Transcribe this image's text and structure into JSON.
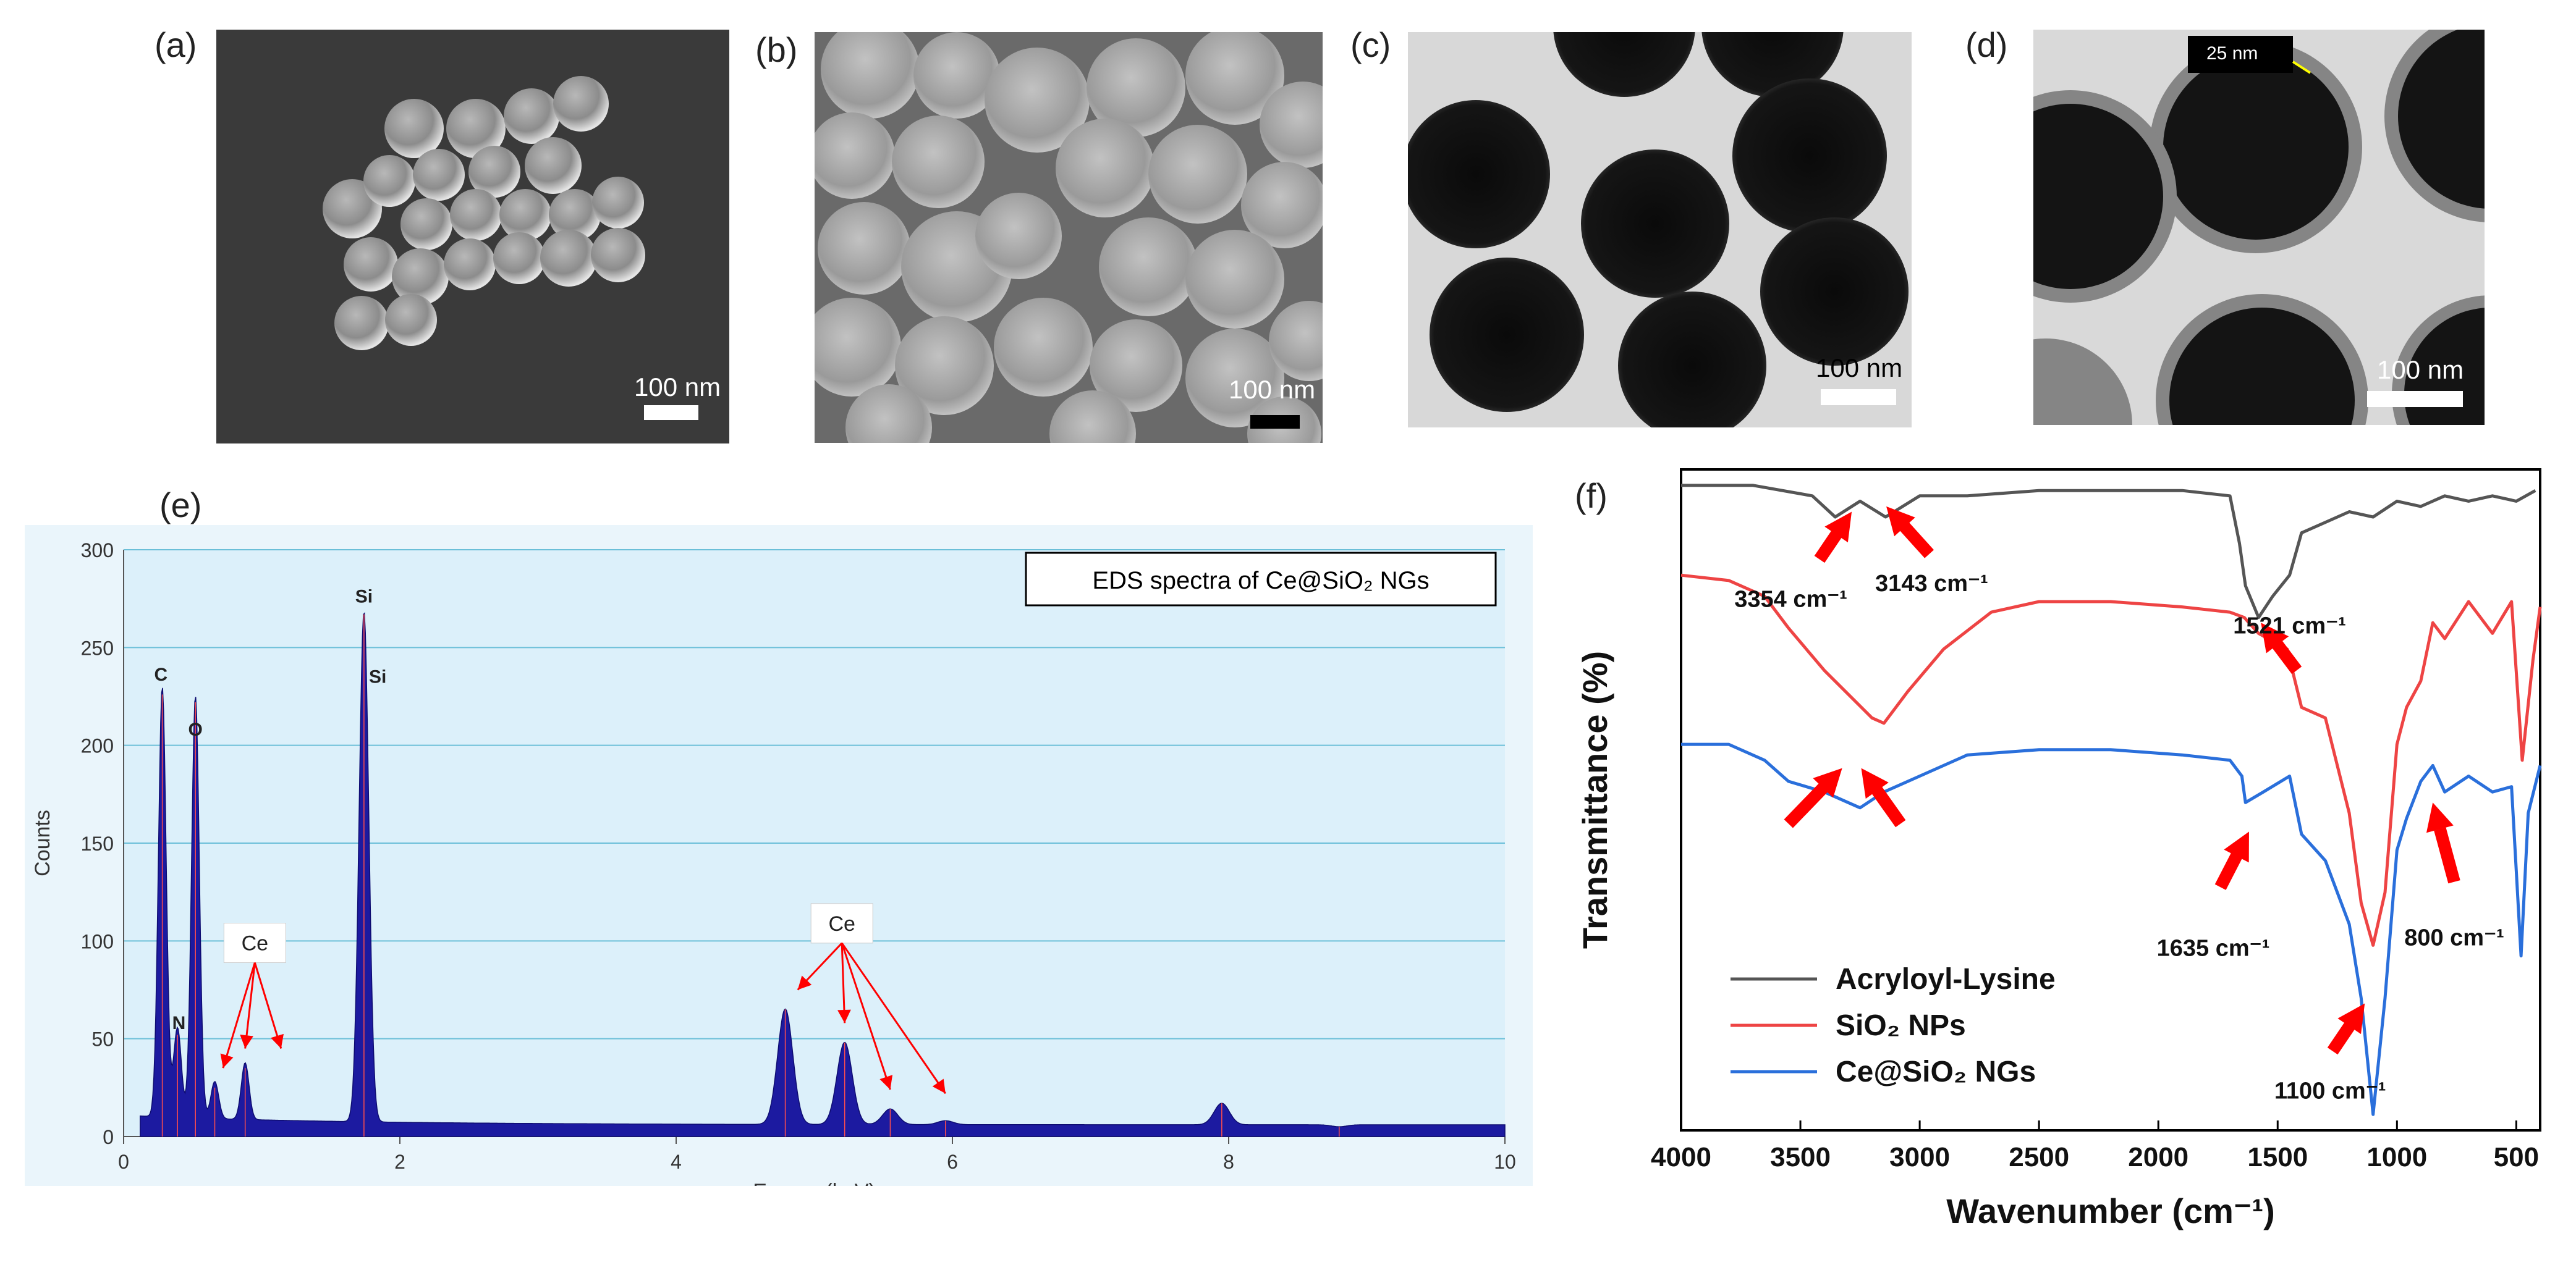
{
  "panels": {
    "a": {
      "letter": "(a)",
      "scale": "100 nm"
    },
    "b": {
      "letter": "(b)",
      "scale": "100 nm"
    },
    "c": {
      "letter": "(c)",
      "scale": "100 nm"
    },
    "d": {
      "letter": "(d)",
      "scale": "100 nm",
      "shell_label": "25 nm"
    },
    "e": {
      "letter": "(e)"
    },
    "f": {
      "letter": "(f)"
    }
  },
  "colors": {
    "eds_bg": "#dcf0fa",
    "eds_fill": "#1c1aa0",
    "arrow_red": "#ff0000",
    "acryloyl": "#555555",
    "sio2": "#ee4444",
    "ce_sio2": "#2a6fdb"
  },
  "chart_data": [
    {
      "type": "area",
      "title": "EDS spectra of Ce@SiO₂ NGs",
      "xlabel": "Energy (keV)",
      "ylabel": "Counts",
      "xlim": [
        0,
        10
      ],
      "ylim": [
        0,
        300
      ],
      "xticks": [
        0,
        2,
        4,
        6,
        8,
        10
      ],
      "yticks": [
        0,
        50,
        100,
        150,
        200,
        250,
        300
      ],
      "grid": true,
      "peaks": [
        {
          "label": "C",
          "x": 0.28,
          "y": 226
        },
        {
          "label": "N",
          "x": 0.39,
          "y": 52
        },
        {
          "label": "O",
          "x": 0.52,
          "y": 222
        },
        {
          "label": "",
          "x": 0.66,
          "y": 25
        },
        {
          "label": "",
          "x": 0.88,
          "y": 35
        },
        {
          "label": "Si",
          "x": 1.74,
          "y": 267
        },
        {
          "label": "",
          "x": 4.79,
          "y": 65
        },
        {
          "label": "",
          "x": 5.22,
          "y": 48
        },
        {
          "label": "",
          "x": 5.55,
          "y": 14
        },
        {
          "label": "",
          "x": 5.95,
          "y": 8
        },
        {
          "label": "",
          "x": 7.95,
          "y": 17
        },
        {
          "label": "",
          "x": 8.8,
          "y": 5
        }
      ],
      "element_labels": [
        {
          "text": "C",
          "x": 0.27,
          "y": 233
        },
        {
          "text": "O",
          "x": 0.52,
          "y": 205
        },
        {
          "text": "N",
          "x": 0.4,
          "y": 55
        },
        {
          "text": "Si",
          "x": 1.74,
          "y": 273
        },
        {
          "text": "Si",
          "x": 1.84,
          "y": 232
        }
      ],
      "annotations": [
        {
          "text": "Ce",
          "x": 0.95,
          "y": 99,
          "arrows_to": [
            0.72,
            0.88,
            1.14
          ]
        },
        {
          "text": "Ce",
          "x": 5.2,
          "y": 109,
          "arrows_to": [
            4.88,
            5.22,
            5.55,
            5.95
          ]
        }
      ]
    },
    {
      "type": "line",
      "xlabel": "Wavenumber (cm⁻¹)",
      "ylabel": "Transmittance (%)",
      "xlim": [
        4000,
        400
      ],
      "xticks": [
        4000,
        3500,
        3000,
        2500,
        2000,
        1500,
        1000,
        500
      ],
      "series": [
        {
          "name": "Acryloyl-Lysine",
          "key": "acryloyl",
          "x": [
            4000,
            3700,
            3450,
            3354,
            3250,
            3143,
            3000,
            2800,
            2500,
            2200,
            1900,
            1700,
            1660,
            1635,
            1580,
            1521,
            1450,
            1400,
            1300,
            1200,
            1100,
            1000,
            900,
            800,
            700,
            600,
            500,
            420
          ],
          "y": [
            97,
            97,
            95,
            91,
            94,
            91,
            95,
            95,
            96,
            96,
            96,
            95,
            86,
            78,
            72,
            76,
            80,
            88,
            90,
            92,
            91,
            94,
            93,
            95,
            94,
            95,
            94,
            96
          ]
        },
        {
          "name": "SiO₂ NPs",
          "key": "sio2",
          "x": [
            4000,
            3800,
            3650,
            3550,
            3400,
            3200,
            3150,
            3050,
            2900,
            2700,
            2500,
            2200,
            1900,
            1700,
            1640,
            1580,
            1460,
            1400,
            1300,
            1200,
            1150,
            1100,
            1050,
            1000,
            960,
            900,
            850,
            800,
            700,
            600,
            520,
            475,
            430,
            400
          ],
          "y": [
            80,
            79,
            76,
            70,
            62,
            53,
            52,
            58,
            66,
            73,
            75,
            75,
            74,
            73,
            72,
            69,
            66,
            55,
            53,
            35,
            18,
            10,
            20,
            48,
            55,
            60,
            71,
            68,
            75,
            69,
            75,
            45,
            64,
            74
          ]
        },
        {
          "name": "Ce@SiO₂ NGs",
          "key": "ce_sio2",
          "x": [
            4000,
            3800,
            3650,
            3550,
            3400,
            3300,
            3250,
            3150,
            3000,
            2800,
            2500,
            2200,
            1900,
            1700,
            1650,
            1635,
            1560,
            1450,
            1400,
            1300,
            1200,
            1150,
            1100,
            1050,
            1000,
            960,
            900,
            850,
            800,
            700,
            600,
            520,
            480,
            450,
            400
          ],
          "y": [
            48,
            48,
            45,
            41,
            39,
            37,
            36,
            39,
            42,
            46,
            47,
            47,
            46,
            45,
            42,
            37,
            39,
            42,
            31,
            26,
            14,
            0,
            -22,
            0,
            28,
            34,
            41,
            44,
            39,
            42,
            39,
            40,
            8,
            35,
            44
          ]
        }
      ],
      "annotations": [
        {
          "text": "3354 cm⁻¹",
          "series": "acryloyl"
        },
        {
          "text": "3143 cm⁻¹",
          "series": "acryloyl"
        },
        {
          "text": "1521 cm⁻¹",
          "series": "acryloyl"
        },
        {
          "text": "1635 cm⁻¹",
          "series": "ce_sio2"
        },
        {
          "text": "800 cm⁻¹",
          "series": "ce_sio2"
        },
        {
          "text": "1100 cm⁻¹",
          "series": "ce_sio2"
        }
      ],
      "legend_position": "bottom-left"
    }
  ]
}
